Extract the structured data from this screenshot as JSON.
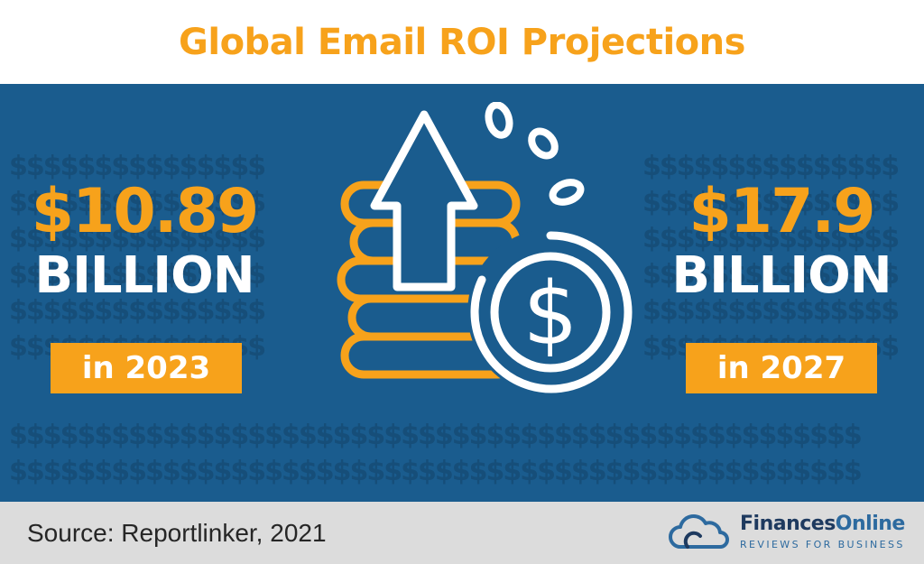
{
  "header": {
    "title": "Global Email ROI Projections"
  },
  "stats": [
    {
      "amount": "$10.89",
      "unit": "BILLION",
      "year": "in 2023"
    },
    {
      "amount": "$17.9",
      "unit": "BILLION",
      "year": "in 2027"
    }
  ],
  "illustration": {
    "icons": [
      "arrow-up-icon",
      "coin-stack-icon",
      "dollar-coin-icon"
    ],
    "coin_symbol": "$"
  },
  "footer": {
    "source": "Source: Reportlinker, 2021",
    "logo": {
      "name_part1": "Finances",
      "name_part2": "Online",
      "tagline": "REVIEWS FOR BUSINESS"
    }
  },
  "colors": {
    "accent": "#f7a21b",
    "panel": "#1a5c8e",
    "pattern": "#164e79",
    "text_light": "#ffffff",
    "footer_bg": "#dcdcdc",
    "logo_dark": "#1e3a5f",
    "logo_blue": "#2d6a9f"
  }
}
